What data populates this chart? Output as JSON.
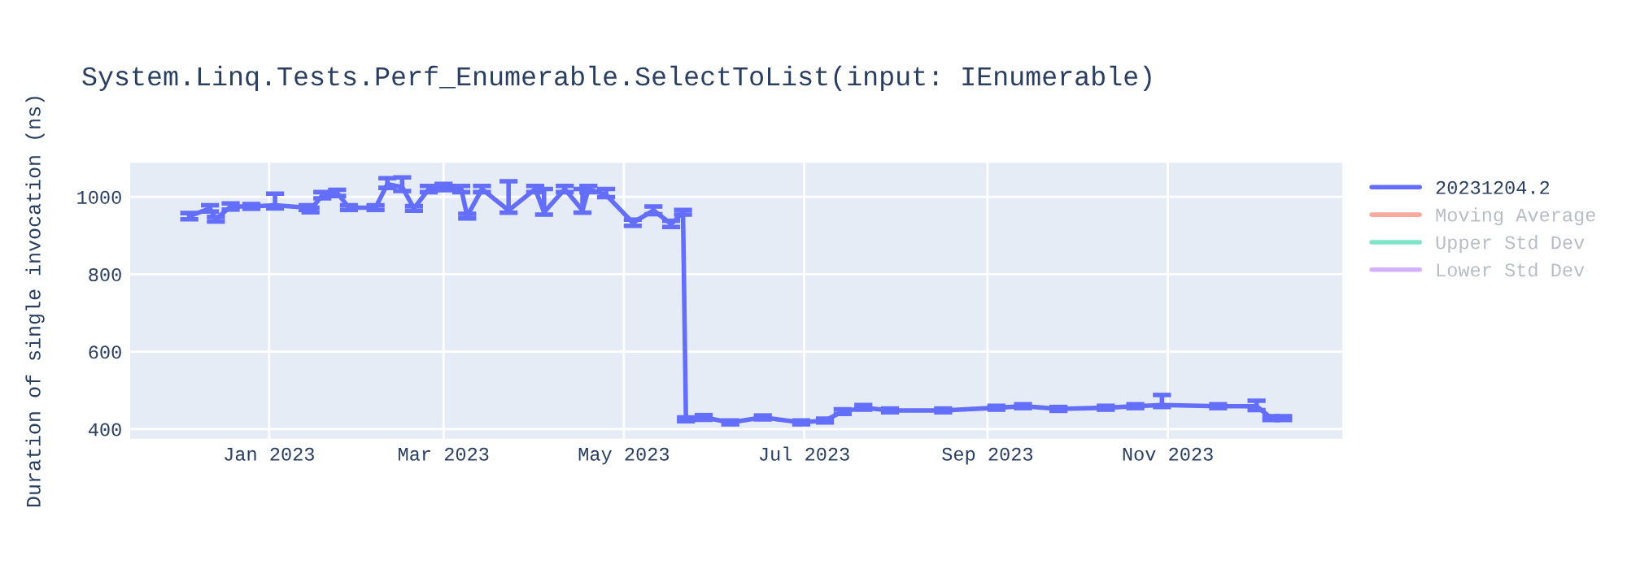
{
  "chart_data": {
    "type": "line",
    "title": "System.Linq.Tests.Perf_Enumerable.SelectToList(input: IEnumerable)",
    "ylabel": "Duration of single invocation (ns)",
    "x": [
      "2022-12-05",
      "2022-12-12",
      "2022-12-14",
      "2022-12-19",
      "2022-12-26",
      "2023-01-03",
      "2023-01-14",
      "2023-01-15",
      "2023-01-19",
      "2023-01-24",
      "2023-01-28",
      "2023-02-06",
      "2023-02-10",
      "2023-02-15",
      "2023-02-19",
      "2023-02-24",
      "2023-03-01",
      "2023-03-07",
      "2023-03-09",
      "2023-03-14",
      "2023-03-23",
      "2023-04-01",
      "2023-04-04",
      "2023-04-11",
      "2023-04-17",
      "2023-04-19",
      "2023-04-25",
      "2023-05-04",
      "2023-05-11",
      "2023-05-17",
      "2023-05-21",
      "2023-05-22",
      "2023-05-28",
      "2023-06-06",
      "2023-06-17",
      "2023-06-30",
      "2023-07-08",
      "2023-07-14",
      "2023-07-21",
      "2023-07-30",
      "2023-08-17",
      "2023-09-04",
      "2023-09-13",
      "2023-09-25",
      "2023-10-11",
      "2023-10-21",
      "2023-10-30",
      "2023-11-18",
      "2023-12-01",
      "2023-12-06",
      "2023-12-10"
    ],
    "series": [
      {
        "name": "20231204.2",
        "color": "#636efa",
        "values": [
          950,
          970,
          942,
          975,
          975,
          978,
          972,
          966,
          1004,
          1010,
          972,
          972,
          1033,
          1025,
          970,
          1020,
          1025,
          1020,
          950,
          1020,
          965,
          1020,
          960,
          1020,
          965,
          1020,
          1005,
          933,
          965,
          930,
          960,
          425,
          430,
          417,
          430,
          417,
          422,
          445,
          455,
          448,
          448,
          455,
          459,
          452,
          455,
          459,
          462,
          459,
          459,
          428,
          428
        ],
        "errors": [
          8,
          8,
          6,
          8,
          6,
          [
            970,
            1008
          ],
          6,
          6,
          8,
          8,
          6,
          6,
          [
            1023,
            1048
          ],
          [
            1015,
            1050
          ],
          6,
          8,
          8,
          8,
          6,
          8,
          [
            959,
            1040
          ],
          8,
          [
            954,
            1020
          ],
          8,
          [
            959,
            1020
          ],
          8,
          [
            999,
            1020
          ],
          8,
          10,
          8,
          6,
          5,
          6,
          5,
          5,
          5,
          5,
          6,
          [
            450,
            462
          ],
          5,
          5,
          5,
          5,
          5,
          5,
          5,
          [
            457,
            488
          ],
          5,
          [
            449,
            473
          ],
          5,
          5
        ]
      },
      {
        "name": "Moving Average",
        "color": "#ef553b",
        "values": [
          null,
          null,
          null,
          null,
          null,
          null,
          null,
          null,
          null,
          null,
          null,
          null,
          null,
          null,
          null,
          null,
          null,
          null,
          null,
          null,
          null,
          null,
          null,
          null,
          null,
          null,
          null,
          null,
          null,
          null,
          null,
          null,
          null,
          null,
          null,
          null,
          null,
          null,
          null,
          null,
          null,
          null,
          null,
          null,
          null,
          null,
          null,
          null,
          null,
          null,
          null
        ]
      },
      {
        "name": "Upper Std Dev",
        "color": "#00cc96",
        "values": [
          null,
          null,
          null,
          null,
          null,
          null,
          null,
          null,
          null,
          null,
          null,
          null,
          null,
          null,
          null,
          null,
          null,
          null,
          null,
          null,
          null,
          null,
          null,
          null,
          null,
          null,
          null,
          null,
          null,
          null,
          null,
          null,
          null,
          null,
          null,
          null,
          null,
          null,
          null,
          null,
          null,
          null,
          null,
          null,
          null,
          null,
          null,
          null,
          null,
          null,
          null
        ]
      },
      {
        "name": "Lower Std Dev",
        "color": "#ab63fa",
        "values": [
          null,
          null,
          null,
          null,
          null,
          null,
          null,
          null,
          null,
          null,
          null,
          null,
          null,
          null,
          null,
          null,
          null,
          null,
          null,
          null,
          null,
          null,
          null,
          null,
          null,
          null,
          null,
          null,
          null,
          null,
          null,
          null,
          null,
          null,
          null,
          null,
          null,
          null,
          null,
          null,
          null,
          null,
          null,
          null,
          null,
          null,
          null,
          null,
          null,
          null,
          null
        ]
      }
    ],
    "xlim": [
      "2022-11-15",
      "2023-12-30"
    ],
    "xticks": [
      {
        "value": "2023-01-01",
        "label": "Jan 2023"
      },
      {
        "value": "2023-03-01",
        "label": "Mar 2023"
      },
      {
        "value": "2023-05-01",
        "label": "May 2023"
      },
      {
        "value": "2023-07-01",
        "label": "Jul 2023"
      },
      {
        "value": "2023-09-01",
        "label": "Sep 2023"
      },
      {
        "value": "2023-11-01",
        "label": "Nov 2023"
      }
    ],
    "ylim": [
      375,
      1088
    ],
    "yticks": [
      400,
      600,
      800,
      1000
    ],
    "grid": true,
    "legend": "right"
  }
}
